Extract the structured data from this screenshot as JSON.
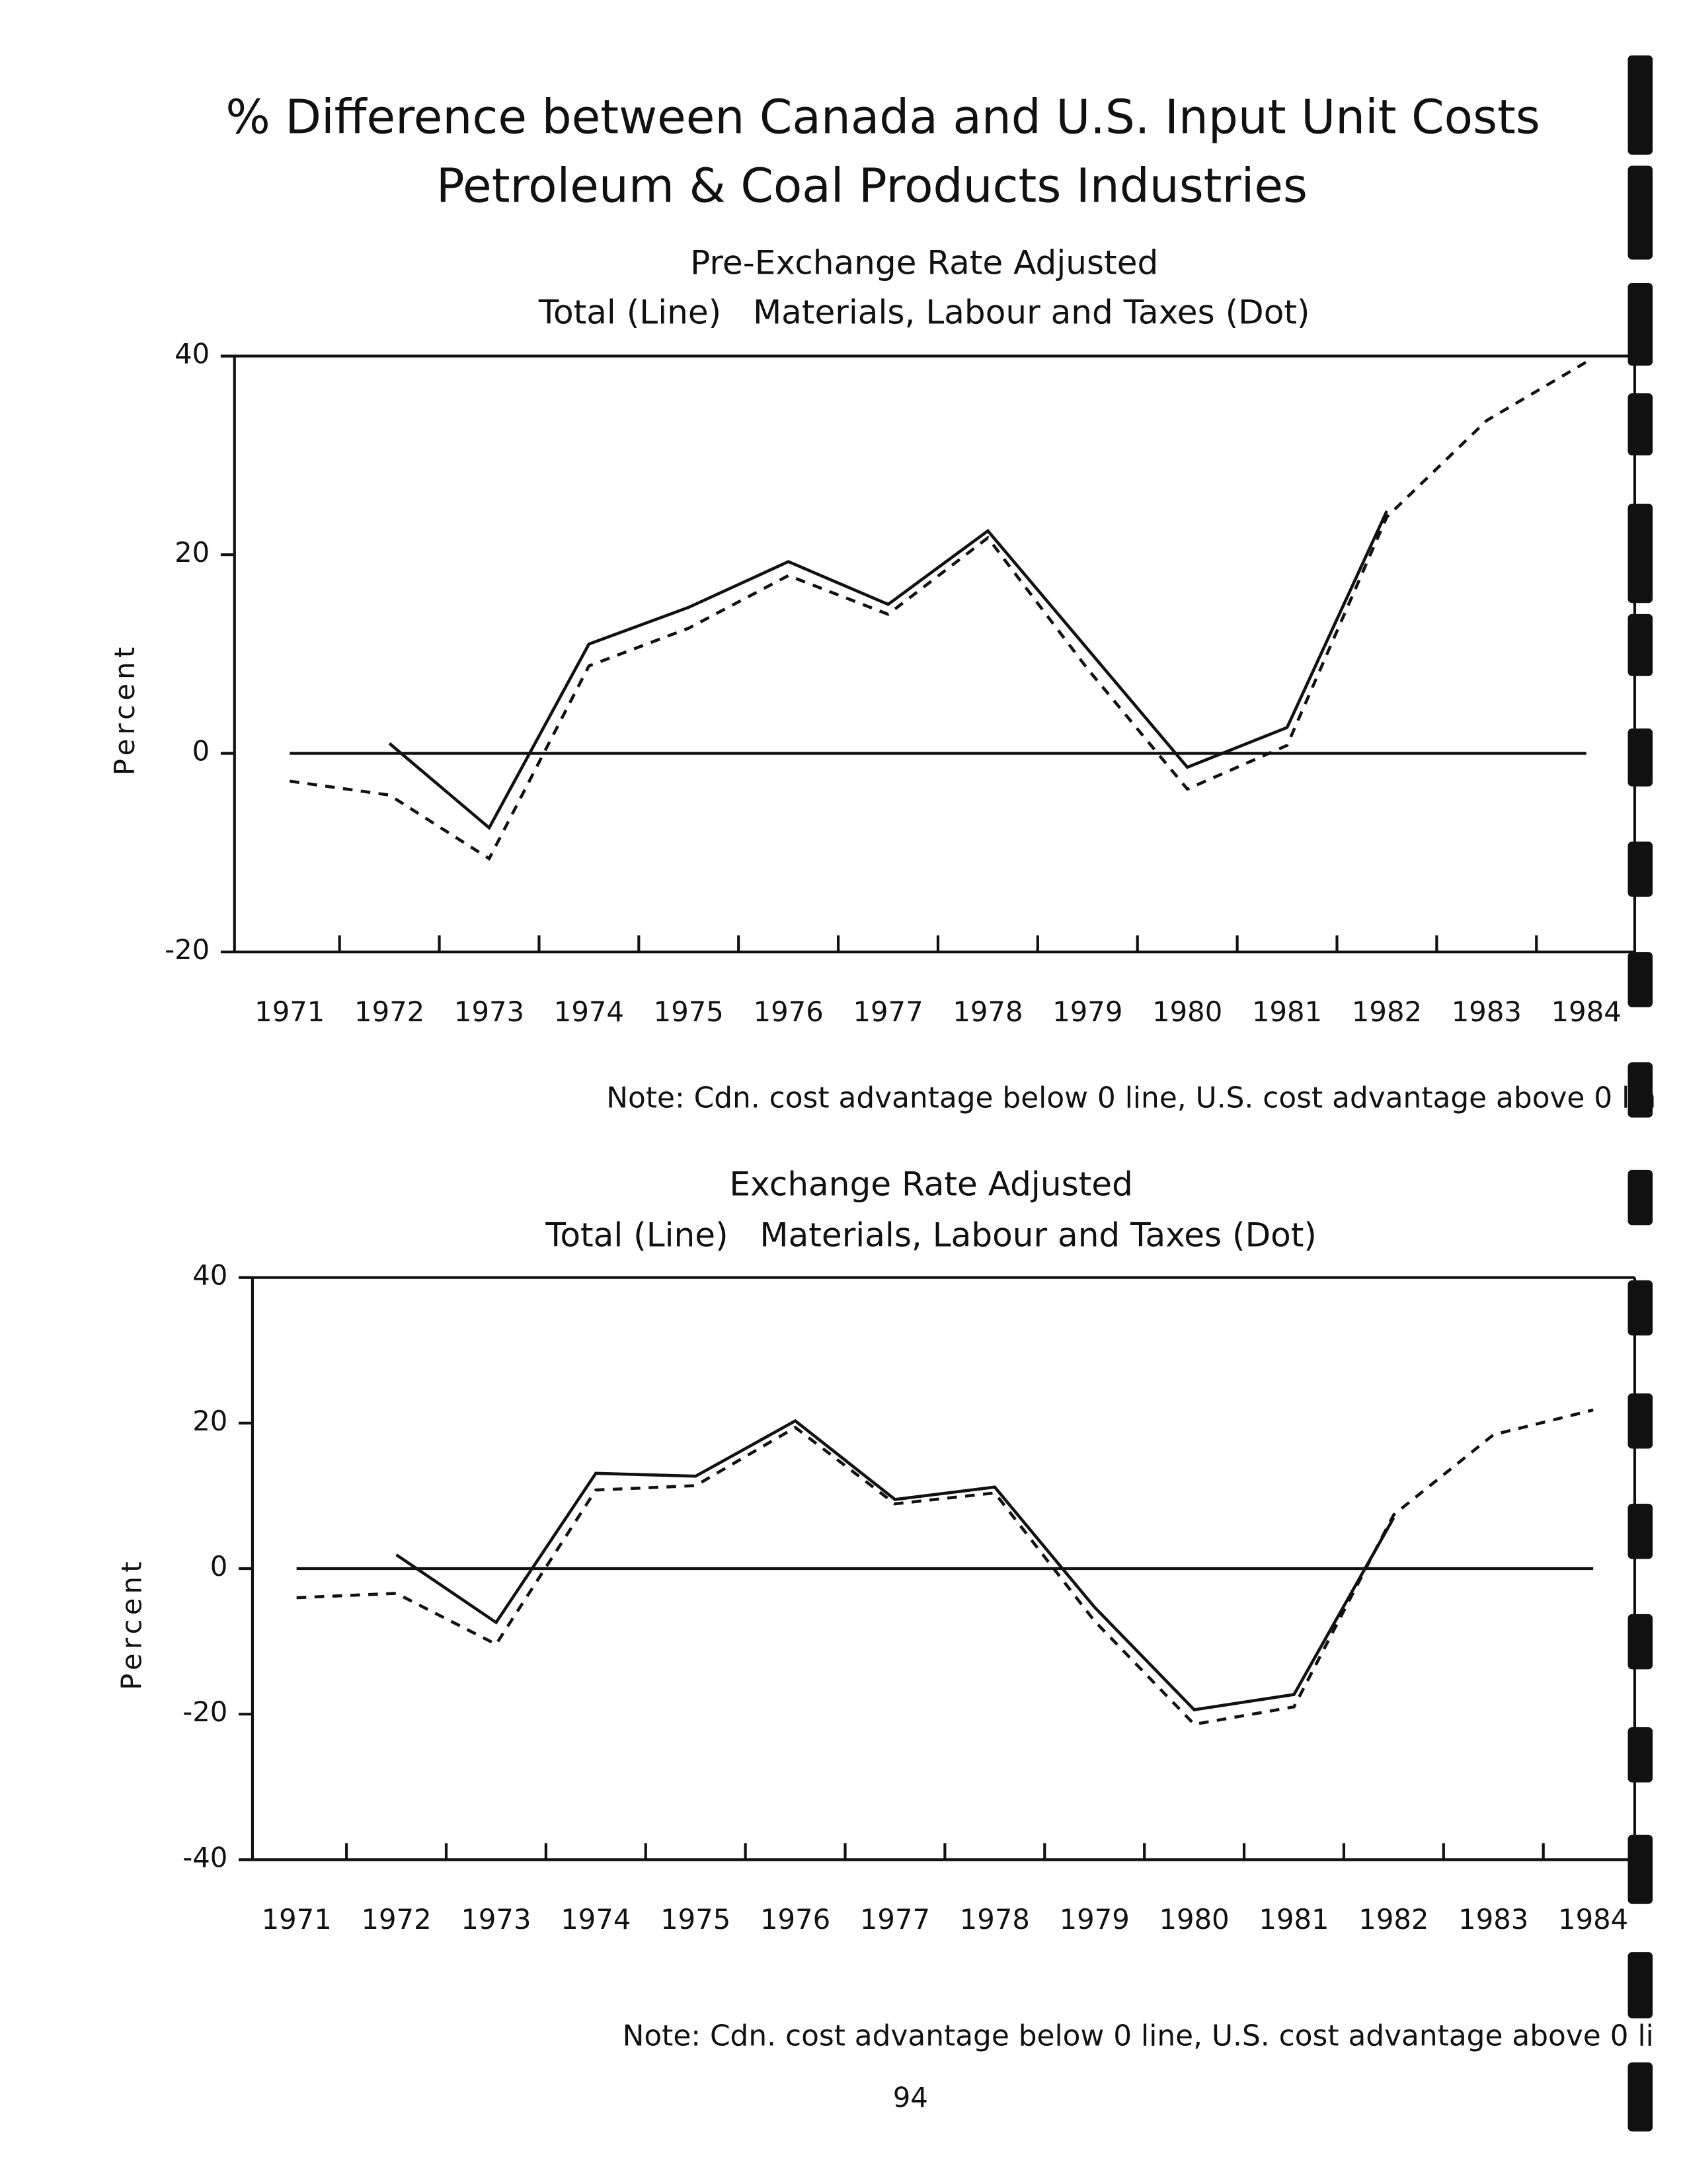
{
  "title": "% Difference between Canada and U.S. Input Unit Costs",
  "subtitle": "Petroleum & Coal Products Industries",
  "page_number": "94",
  "chart_data": [
    {
      "type": "line",
      "title": "Pre-Exchange Rate Adjusted",
      "subtitle": "Total (Line)   Materials, Labour and Taxes (Dot)",
      "ylabel": "Percent",
      "note": "Note: Cdn. cost advantage below 0 line, U.S. cost advantage above 0 lin",
      "categories": [
        "1971",
        "1972",
        "1973",
        "1974",
        "1975",
        "1976",
        "1977",
        "1978",
        "1979",
        "1980",
        "1981",
        "1982",
        "1983",
        "1984"
      ],
      "series": [
        {
          "style": "solid",
          "color": "#111111",
          "values": [
            null,
            1,
            -7.5,
            11,
            14.7,
            19.3,
            15,
            22.4,
            10.5,
            -1.4,
            2.6,
            24.4,
            null,
            null
          ]
        },
        {
          "style": "dashed",
          "color": "#111111",
          "values": [
            -2.8,
            -4.2,
            -10.6,
            8.8,
            12.6,
            17.9,
            14,
            21.7,
            8.5,
            -3.6,
            0.8,
            23.8,
            33.5,
            39.4
          ]
        }
      ],
      "ylim": [
        -20,
        40
      ],
      "yticks": [
        -20,
        0,
        20,
        40
      ]
    },
    {
      "type": "line",
      "title": "Exchange Rate Adjusted",
      "subtitle": "Total (Line)   Materials, Labour and Taxes (Dot)",
      "ylabel": "Percent",
      "note": "Note: Cdn. cost advantage below 0 line, U.S. cost advantage above 0 li",
      "categories": [
        "1971",
        "1972",
        "1973",
        "1974",
        "1975",
        "1976",
        "1977",
        "1978",
        "1979",
        "1980",
        "1981",
        "1982",
        "1983",
        "1984"
      ],
      "series": [
        {
          "style": "solid",
          "color": "#111111",
          "values": [
            null,
            1.9,
            -7.4,
            13.1,
            12.7,
            20.3,
            9.5,
            11.2,
            -5.3,
            -19.4,
            -17.3,
            7,
            null,
            null
          ]
        },
        {
          "style": "dashed",
          "color": "#111111",
          "values": [
            -4,
            -3.4,
            -10.4,
            10.8,
            11.4,
            19.4,
            8.9,
            10.4,
            -7.2,
            -21.4,
            -19,
            7.4,
            18.4,
            21.8
          ]
        }
      ],
      "ylim": [
        -40,
        40
      ],
      "yticks": [
        -40,
        -20,
        0,
        20,
        40
      ]
    }
  ]
}
